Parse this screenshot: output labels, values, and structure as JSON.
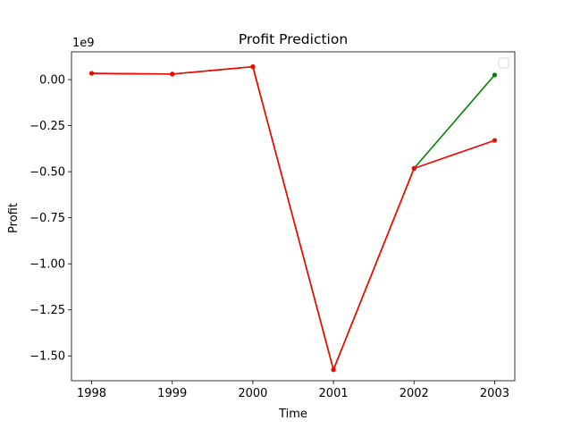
{
  "chart_data": {
    "type": "line",
    "title": "Profit Prediction",
    "xlabel": "Time",
    "ylabel": "Profit",
    "y_offset_label": "1e9",
    "x": [
      1998,
      1999,
      2000,
      2001,
      2002,
      2003
    ],
    "x_tick_labels": [
      "1998",
      "1999",
      "2000",
      "2001",
      "2002",
      "2003"
    ],
    "y_ticks": [
      0.0,
      -0.25,
      -0.5,
      -0.75,
      -1.0,
      -1.25,
      -1.5
    ],
    "y_tick_labels": [
      "0.00",
      "−0.25",
      "−0.50",
      "−0.75",
      "−1.00",
      "−1.25",
      "−1.50"
    ],
    "xlim": [
      1997.75,
      2003.25
    ],
    "ylim": [
      -1.6347,
      0.1507
    ],
    "grid": false,
    "legend": "top-right (empty)",
    "series": [
      {
        "color": "#008000",
        "values": [
          0.034,
          0.03,
          0.07,
          -1.575,
          -0.482,
          0.025
        ]
      },
      {
        "color": "#ff0000",
        "values": [
          0.034,
          0.03,
          0.07,
          -1.575,
          -0.482,
          -0.33
        ]
      }
    ]
  }
}
